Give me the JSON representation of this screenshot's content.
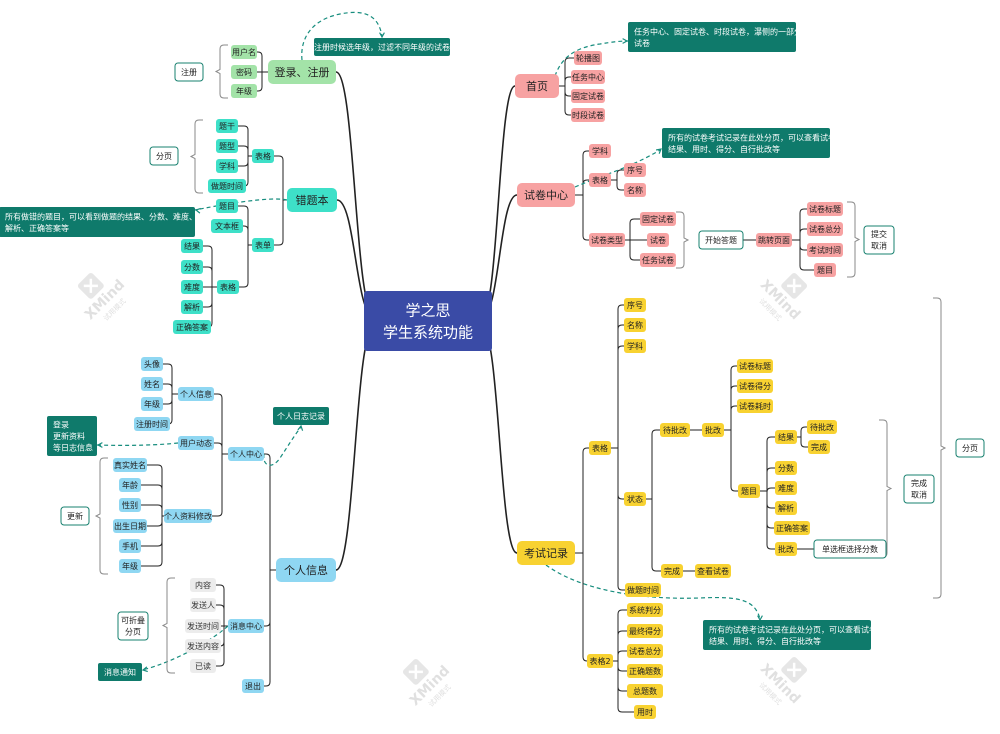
{
  "center": {
    "line1": "学之思",
    "line2": "学生系统功能"
  },
  "watermark": {
    "brand": "XMind",
    "sub": "试用模式"
  },
  "colors": {
    "center": "#3a4ba6",
    "red": "#f7a2a2",
    "green": "#a3e3a8",
    "cyan": "#3ee0c8",
    "blue": "#8fd7f2",
    "yellow": "#f8d231",
    "note": "#0f7a6b",
    "line": "#222222",
    "dash": "#178d7e",
    "bracket": "#8a8a8a"
  },
  "branches": {
    "login": {
      "title": "登录、注册",
      "fields": [
        "用户名",
        "密码",
        "年级"
      ],
      "group_label": "注册",
      "note": "注册时候选年级，过滤不同年级的试卷"
    },
    "wrong_book": {
      "title": "错题本",
      "table": {
        "label": "表格",
        "items": [
          "题干",
          "题型",
          "学科",
          "做题时间"
        ],
        "summary": "分页"
      },
      "form": {
        "label": "表单",
        "top_items": [
          "题目",
          "文本框"
        ],
        "sub": {
          "label": "表格",
          "items": [
            "结果",
            "分数",
            "难度",
            "解析",
            "正确答案"
          ]
        }
      },
      "note": "所有做错的题目，可以看到做题的结果、分数、难度、解析、正确答案等"
    },
    "personal": {
      "title": "个人信息",
      "center": {
        "label": "个人中心",
        "info": {
          "label": "个人信息",
          "items": [
            "头像",
            "姓名",
            "年级",
            "注册时间"
          ]
        },
        "dynamic": {
          "label": "用户动态",
          "note": [
            "登录",
            "更新资料",
            "等日志信息"
          ]
        },
        "modify": {
          "label": "个人资料修改",
          "items": [
            "真实姓名",
            "年龄",
            "性别",
            "出生日期",
            "手机",
            "年级"
          ],
          "summary": "更新"
        },
        "log_note": "个人日志记录"
      },
      "message": {
        "label": "消息中心",
        "items": [
          "内容",
          "发送人",
          "发送时间",
          "发送内容",
          "已读"
        ],
        "summary": [
          "可折叠",
          "分页"
        ],
        "note": "消息通知"
      },
      "logout": "退出"
    },
    "home": {
      "title": "首页",
      "items": [
        "轮播图",
        "任务中心",
        "固定试卷",
        "时段试卷"
      ],
      "note": "任务中心、固定试卷、时段试卷，瀑侧的一部分试卷"
    },
    "exam_center": {
      "title": "试卷中心",
      "subject": "学科",
      "table": {
        "label": "表格",
        "items": [
          "序号",
          "名称"
        ]
      },
      "type": {
        "label": "试卷类型",
        "items": [
          "固定试卷",
          "试卷",
          "任务试卷"
        ]
      },
      "start": "开始答题",
      "jump": "跳转页面",
      "jump_items": [
        "试卷标题",
        "试卷总分",
        "考试时间",
        "题目"
      ],
      "summary": [
        "提交",
        "取消"
      ],
      "note": "所有的试卷考试记录在此处分页，可以查看试卷结果、用时、得分、自行批改等"
    },
    "exam_record": {
      "title": "考试记录",
      "table": {
        "label": "表格",
        "items": [
          "序号",
          "名称",
          "学科"
        ],
        "status": {
          "label": "状态",
          "pending": {
            "label": "待批改",
            "correct": {
              "label": "批改",
              "top_items": [
                "试卷标题",
                "试卷得分",
                "试卷耗时"
              ],
              "question": {
                "label": "题目",
                "result": {
                  "label": "结果",
                  "items": [
                    "待批改",
                    "完成"
                  ]
                },
                "items": [
                  "分数",
                  "难度",
                  "解析",
                  "正确答案"
                ],
                "grade": {
                  "label": "批改",
                  "target": "单选框选择分数"
                }
              }
            }
          },
          "done": {
            "label": "完成",
            "action": "查看试卷"
          }
        },
        "time": "做题时间",
        "summary_inner": [
          "完成",
          "取消"
        ],
        "summary_outer": "分页"
      },
      "table2": {
        "label": "表格2",
        "items": [
          "系统判分",
          "最终得分",
          "试卷总分",
          "正确题数",
          "总题数",
          "用时"
        ]
      },
      "note": "所有的试卷考试记录在此处分页，可以查看试卷结果、用时、得分、自行批改等"
    }
  }
}
